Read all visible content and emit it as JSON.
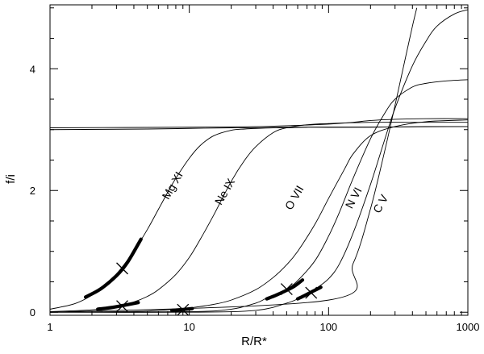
{
  "chart_data": {
    "type": "line",
    "title": "",
    "xlabel": "R/R*",
    "ylabel": "f/i",
    "xscale": "log",
    "xlim": [
      1,
      1000
    ],
    "ylim": [
      -0.05,
      5.05
    ],
    "grid": false,
    "x_ticks": [
      {
        "value": 1,
        "label": "1"
      },
      {
        "value": 10,
        "label": "10"
      },
      {
        "value": 100,
        "label": "100"
      },
      {
        "value": 1000,
        "label": "1000"
      }
    ],
    "y_ticks": [
      {
        "value": 0,
        "label": "0"
      },
      {
        "value": 2,
        "label": "2"
      },
      {
        "value": 4,
        "label": "4"
      }
    ],
    "series": [
      {
        "name": "Mg XI",
        "x": [
          1,
          1.5,
          2,
          2.5,
          3,
          3.5,
          4,
          5,
          6,
          7,
          8,
          10,
          12,
          15,
          20,
          25,
          30,
          40,
          50,
          70,
          100,
          200,
          500,
          1000
        ],
        "y": [
          0.05,
          0.14,
          0.28,
          0.45,
          0.63,
          0.82,
          1.0,
          1.36,
          1.69,
          1.97,
          2.2,
          2.53,
          2.74,
          2.9,
          2.99,
          3.01,
          3.02,
          3.03,
          3.03,
          3.04,
          3.04,
          3.04,
          3.05,
          3.05
        ],
        "thick": {
          "x": [
            1.8,
            2.3,
            3.0,
            3.6,
            4.5
          ],
          "y": [
            0.25,
            0.38,
            0.6,
            0.82,
            1.2
          ]
        },
        "marker": {
          "x": 3.3,
          "y": 0.72
        }
      },
      {
        "name": "Ne IX",
        "x": [
          1,
          2,
          3,
          4,
          5,
          6,
          8,
          10,
          12,
          15,
          20,
          25,
          30,
          40,
          50,
          70,
          100,
          200,
          500,
          1000
        ],
        "y": [
          0.01,
          0.04,
          0.1,
          0.17,
          0.26,
          0.37,
          0.62,
          0.9,
          1.2,
          1.6,
          2.15,
          2.5,
          2.72,
          2.95,
          3.03,
          3.08,
          3.1,
          3.12,
          3.12,
          3.12
        ],
        "thick": {
          "x": [
            2.2,
            2.8,
            3.5,
            4.3
          ],
          "y": [
            0.05,
            0.08,
            0.12,
            0.16
          ]
        },
        "marker": {
          "x": 3.3,
          "y": 0.1
        }
      },
      {
        "name": "O VII",
        "x": [
          1,
          3,
          5,
          8,
          10,
          15,
          20,
          30,
          40,
          50,
          60,
          80,
          100,
          130,
          150,
          200,
          300,
          500,
          1000
        ],
        "y": [
          0.0,
          0.01,
          0.02,
          0.05,
          0.07,
          0.13,
          0.2,
          0.37,
          0.57,
          0.78,
          1.0,
          1.45,
          1.87,
          2.35,
          2.6,
          2.9,
          3.05,
          3.13,
          3.16
        ],
        "thick": {
          "x": [
            7.5,
            8.5,
            9.5,
            10.5
          ],
          "y": [
            0.03,
            0.04,
            0.05,
            0.06
          ]
        },
        "marker": {
          "x": 9.0,
          "y": 0.04
        }
      },
      {
        "name": "N VI",
        "x": [
          1,
          10,
          20,
          30,
          35,
          40,
          50,
          60,
          80,
          100,
          120,
          150,
          200,
          250,
          300,
          400,
          500,
          700,
          1000
        ],
        "y": [
          0.0,
          0.01,
          0.05,
          0.15,
          0.22,
          0.28,
          0.38,
          0.52,
          0.85,
          1.25,
          1.65,
          2.2,
          2.85,
          3.25,
          3.5,
          3.7,
          3.76,
          3.8,
          3.82
        ],
        "thick": {
          "x": [
            36,
            42,
            50,
            57,
            65
          ],
          "y": [
            0.22,
            0.28,
            0.36,
            0.43,
            0.53
          ]
        },
        "marker": {
          "x": 50,
          "y": 0.38
        }
      },
      {
        "name": "C V",
        "x": [
          1,
          10,
          30,
          50,
          60,
          70,
          80,
          100,
          120,
          150,
          200,
          250,
          300,
          400,
          500,
          600,
          800,
          1000
        ],
        "y": [
          0.0,
          0.0,
          0.03,
          0.15,
          0.22,
          0.3,
          0.38,
          0.55,
          0.8,
          1.3,
          2.1,
          2.8,
          3.35,
          4.05,
          4.45,
          4.7,
          4.9,
          4.97
        ],
        "thick": {
          "x": [
            60,
            68,
            78,
            88
          ],
          "y": [
            0.22,
            0.28,
            0.35,
            0.41
          ]
        },
        "marker": {
          "x": 75,
          "y": 0.32
        }
      },
      {
        "name": "",
        "x": [
          1,
          100,
          150,
          200,
          250,
          300,
          350,
          400,
          430
        ],
        "y": [
          0.0,
          0.2,
          0.8,
          1.7,
          2.6,
          3.4,
          4.1,
          4.7,
          5.0
        ]
      },
      {
        "name": "",
        "x": [
          1,
          5,
          10,
          20,
          30,
          50,
          100,
          1000
        ],
        "y": [
          3.0,
          3.01,
          3.02,
          3.03,
          3.03,
          3.04,
          3.04,
          3.05
        ]
      },
      {
        "name": "",
        "x": [
          1,
          10,
          30,
          60,
          100,
          150,
          200,
          300,
          500,
          1000
        ],
        "y": [
          3.03,
          3.04,
          3.05,
          3.07,
          3.09,
          3.12,
          3.15,
          3.17,
          3.18,
          3.18
        ]
      }
    ],
    "annotations": [
      {
        "text": "Mg XI",
        "x": 8.0,
        "y": 2.05,
        "rotate": -60
      },
      {
        "text": "Ne IX",
        "x": 19.0,
        "y": 1.95,
        "rotate": -60
      },
      {
        "text": "O VII",
        "x": 60.0,
        "y": 1.85,
        "rotate": -60
      },
      {
        "text": "N VI",
        "x": 160,
        "y": 1.85,
        "rotate": -62
      },
      {
        "text": "C V",
        "x": 250,
        "y": 1.75,
        "rotate": -62
      }
    ]
  }
}
